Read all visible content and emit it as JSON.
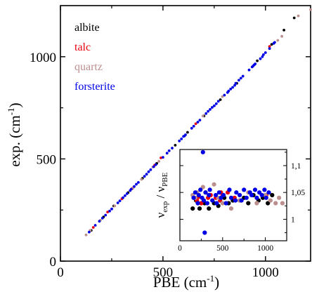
{
  "chart_data": [
    {
      "type": "scatter",
      "xlabel_main": "PBE (cm",
      "xlabel_sup": "-1",
      "xlabel_end": ")",
      "ylabel_main": "exp. (cm",
      "ylabel_sup": "-1",
      "ylabel_end": ")",
      "xlim": [
        0,
        1220
      ],
      "ylim": [
        0,
        1250
      ],
      "xticks": [
        0,
        500,
        1000
      ],
      "xtick_labels": [
        "0",
        "500",
        "1000"
      ],
      "yticks": [
        0,
        500,
        1000
      ],
      "ytick_labels": [
        "0",
        "500",
        "1000"
      ],
      "legend_position": "top-left",
      "grid": false,
      "series": [
        {
          "name": "albite",
          "color": "#000000",
          "points": [
            [
              150,
              150
            ],
            [
              210,
              216
            ],
            [
              260,
              270
            ],
            [
              330,
              335
            ],
            [
              400,
              405
            ],
            [
              470,
              478
            ],
            [
              560,
              567
            ],
            [
              620,
              630
            ],
            [
              700,
              710
            ],
            [
              780,
              790
            ],
            [
              860,
              870
            ],
            [
              960,
              980
            ],
            [
              1030,
              1060
            ],
            [
              1090,
              1130
            ],
            [
              1140,
              1190
            ]
          ]
        },
        {
          "name": "talc",
          "color": "#e8000b",
          "points": [
            [
              160,
              165
            ],
            [
              230,
              240
            ],
            [
              300,
              305
            ],
            [
              350,
              355
            ],
            [
              460,
              470
            ],
            [
              490,
              505
            ],
            [
              660,
              672
            ],
            [
              1020,
              1050
            ]
          ]
        },
        {
          "name": "quartz",
          "color": "#bc8f8f",
          "points": [
            [
              125,
              128
            ],
            [
              145,
              150
            ],
            [
              195,
              200
            ],
            [
              265,
              270
            ],
            [
              355,
              360
            ],
            [
              395,
              400
            ],
            [
              450,
              460
            ],
            [
              480,
              488
            ],
            [
              695,
              710
            ],
            [
              790,
              805
            ],
            [
              1060,
              1080
            ],
            [
              1080,
              1100
            ],
            [
              1160,
              1200
            ],
            [
              1220,
              1230
            ]
          ]
        },
        {
          "name": "forsterite",
          "color": "#0000e6",
          "points": [
            [
              140,
              142
            ],
            [
              170,
              175
            ],
            [
              190,
              195
            ],
            [
              205,
              210
            ],
            [
              220,
              225
            ],
            [
              240,
              245
            ],
            [
              250,
              255
            ],
            [
              280,
              285
            ],
            [
              290,
              295
            ],
            [
              305,
              310
            ],
            [
              315,
              320
            ],
            [
              325,
              330
            ],
            [
              340,
              345
            ],
            [
              345,
              352
            ],
            [
              360,
              365
            ],
            [
              370,
              376
            ],
            [
              380,
              385
            ],
            [
              410,
              415
            ],
            [
              420,
              425
            ],
            [
              430,
              437
            ],
            [
              440,
              447
            ],
            [
              455,
              462
            ],
            [
              465,
              472
            ],
            [
              500,
              508
            ],
            [
              520,
              528
            ],
            [
              530,
              540
            ],
            [
              545,
              553
            ],
            [
              580,
              588
            ],
            [
              590,
              598
            ],
            [
              600,
              610
            ],
            [
              605,
              612
            ],
            [
              610,
              618
            ],
            [
              640,
              650
            ],
            [
              650,
              660
            ],
            [
              670,
              680
            ],
            [
              680,
              690
            ],
            [
              710,
              722
            ],
            [
              720,
              733
            ],
            [
              730,
              742
            ],
            [
              740,
              752
            ],
            [
              750,
              760
            ],
            [
              760,
              770
            ],
            [
              770,
              782
            ],
            [
              800,
              812
            ],
            [
              815,
              825
            ],
            [
              820,
              832
            ],
            [
              830,
              842
            ],
            [
              840,
              850
            ],
            [
              850,
              860
            ],
            [
              855,
              870
            ],
            [
              870,
              885
            ],
            [
              880,
              895
            ],
            [
              890,
              905
            ],
            [
              920,
              935
            ],
            [
              935,
              950
            ],
            [
              940,
              955
            ],
            [
              945,
              960
            ],
            [
              950,
              965
            ],
            [
              975,
              990
            ],
            [
              985,
              1000
            ],
            [
              990,
              1010
            ],
            [
              1000,
              1020
            ],
            [
              1020,
              1040
            ],
            [
              1040,
              1065
            ],
            [
              1045,
              1070
            ]
          ]
        }
      ]
    },
    {
      "type": "scatter",
      "ylabel": "ν_exp / ν_PBE",
      "ylabel_a": "ν",
      "ylabel_a_sub": "exp",
      "ylabel_mid": " / ν",
      "ylabel_b_sub": "PBE",
      "xlim": [
        0,
        1250
      ],
      "ylim": [
        0.96,
        1.13
      ],
      "xticks": [
        0,
        500,
        1000
      ],
      "xtick_labels": [
        "0",
        "500",
        "1000"
      ],
      "yticks": [
        1.0,
        1.05,
        1.1
      ],
      "ytick_labels": [
        "1",
        "1,05",
        "1,1"
      ],
      "ytick_position": "right",
      "series": [
        {
          "name": "albite",
          "color": "#000000",
          "points": [
            [
              150,
              1.02
            ],
            [
              190,
              1.035
            ],
            [
              230,
              1.02
            ],
            [
              290,
              1.03
            ],
            [
              340,
              1.02
            ],
            [
              400,
              1.03
            ],
            [
              450,
              1.025
            ],
            [
              520,
              1.04
            ],
            [
              570,
              1.03
            ],
            [
              620,
              1.035
            ],
            [
              700,
              1.035
            ],
            [
              750,
              1.04
            ],
            [
              800,
              1.03
            ],
            [
              860,
              1.045
            ],
            [
              920,
              1.035
            ],
            [
              970,
              1.04
            ],
            [
              1030,
              1.03
            ],
            [
              1080,
              1.045
            ]
          ]
        },
        {
          "name": "talc",
          "color": "#e8000b",
          "points": [
            [
              200,
              1.035
            ],
            [
              220,
              1.042
            ],
            [
              250,
              1.03
            ],
            [
              300,
              1.05
            ],
            [
              330,
              1.04
            ],
            [
              360,
              1.045
            ],
            [
              420,
              1.04
            ],
            [
              470,
              1.035
            ],
            [
              480,
              1.05
            ],
            [
              500,
              1.045
            ],
            [
              560,
              1.05
            ],
            [
              640,
              1.04
            ],
            [
              1010,
              1.045
            ]
          ]
        },
        {
          "name": "quartz",
          "color": "#bc8f8f",
          "points": [
            [
              150,
              1.045
            ],
            [
              180,
              1.04
            ],
            [
              200,
              1.05
            ],
            [
              270,
              1.06
            ],
            [
              300,
              1.05
            ],
            [
              400,
              1.065
            ],
            [
              450,
              1.04
            ],
            [
              500,
              1.03
            ],
            [
              600,
              1.02
            ],
            [
              700,
              1.035
            ],
            [
              800,
              1.05
            ],
            [
              900,
              1.03
            ],
            [
              1000,
              1.045
            ],
            [
              1060,
              1.035
            ],
            [
              1120,
              1.03
            ],
            [
              1160,
              1.04
            ],
            [
              1200,
              1.03
            ]
          ]
        },
        {
          "name": "forsterite",
          "color": "#0000e6",
          "points": [
            [
              160,
              1.04
            ],
            [
              180,
              1.05
            ],
            [
              210,
              1.03
            ],
            [
              220,
              1.045
            ],
            [
              240,
              1.055
            ],
            [
              260,
              1.04
            ],
            [
              270,
              1.125
            ],
            [
              280,
              1.035
            ],
            [
              290,
              0.975
            ],
            [
              300,
              1.05
            ],
            [
              320,
              1.03
            ],
            [
              340,
              1.045
            ],
            [
              350,
              1.055
            ],
            [
              380,
              1.035
            ],
            [
              420,
              1.045
            ],
            [
              430,
              1.03
            ],
            [
              460,
              1.05
            ],
            [
              480,
              1.04
            ],
            [
              510,
              1.045
            ],
            [
              540,
              1.03
            ],
            [
              580,
              1.055
            ],
            [
              600,
              1.04
            ],
            [
              650,
              1.035
            ],
            [
              660,
              1.05
            ],
            [
              700,
              1.045
            ],
            [
              720,
              1.035
            ],
            [
              750,
              1.055
            ],
            [
              780,
              1.04
            ],
            [
              820,
              1.05
            ],
            [
              840,
              1.045
            ],
            [
              880,
              1.055
            ],
            [
              900,
              1.04
            ],
            [
              930,
              1.05
            ],
            [
              960,
              1.045
            ],
            [
              990,
              1.055
            ],
            [
              1010,
              1.04
            ],
            [
              1040,
              1.05
            ]
          ]
        }
      ]
    }
  ]
}
